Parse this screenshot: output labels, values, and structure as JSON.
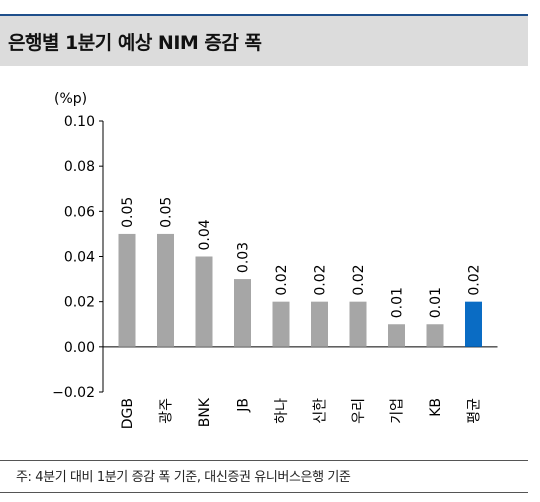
{
  "title": "은행별 1분기 예상 NIM 증감 폭",
  "footnote": "주: 4분기 대비 1분기 증감 폭 기준, 대신증권 유니버스은행 기준",
  "chart_data": {
    "type": "bar",
    "title": "은행별 1분기 예상 NIM 증감 폭",
    "unit": "(%p)",
    "categories": [
      "DGB",
      "광주",
      "BNK",
      "JB",
      "하나",
      "신한",
      "우리",
      "기업",
      "KB",
      "평균"
    ],
    "values": [
      0.05,
      0.05,
      0.04,
      0.03,
      0.02,
      0.02,
      0.02,
      0.01,
      0.01,
      0.02
    ],
    "data_labels": [
      "0.05",
      "0.05",
      "0.04",
      "0.03",
      "0.02",
      "0.02",
      "0.02",
      "0.01",
      "0.01",
      "0.02"
    ],
    "ylim": [
      -0.02,
      0.1
    ],
    "yticks": [
      -0.02,
      0.0,
      0.02,
      0.04,
      0.06,
      0.08,
      0.1
    ],
    "ytick_labels": [
      "−0.02",
      "0.00",
      "0.02",
      "0.04",
      "0.06",
      "0.08",
      "0.10"
    ],
    "grid": false,
    "legend": "none",
    "colors": {
      "bar": "#a6a6a6",
      "highlight": "#0a6cc4",
      "axis": "#000000"
    },
    "highlight_category": "평균"
  }
}
